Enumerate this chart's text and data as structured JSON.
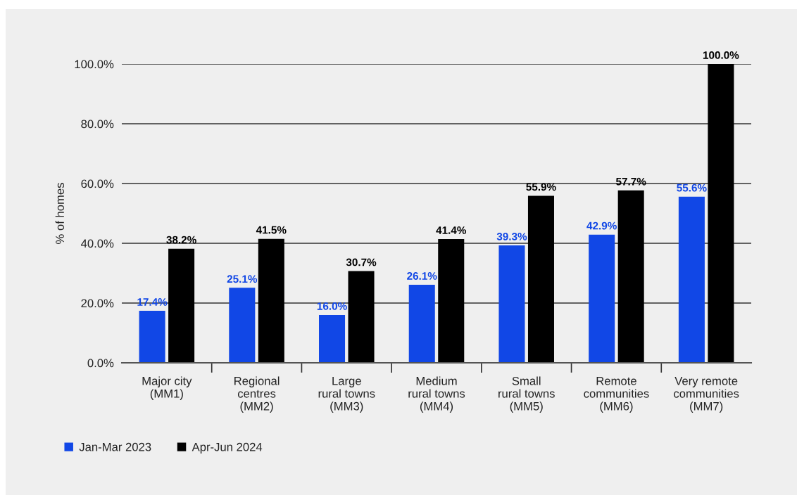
{
  "chart_data": {
    "type": "bar",
    "ylabel": "% of homes",
    "categories": [
      "Major city\n(MM1)",
      "Regional\ncentres\n(MM2)",
      "Large\nrural towns\n(MM3)",
      "Medium\nrural towns\n(MM4)",
      "Small\nrural towns\n(MM5)",
      "Remote\ncommunities\n(MM6)",
      "Very remote\ncommunities\n(MM7)"
    ],
    "series": [
      {
        "name": "Jan-Mar 2023",
        "color": "#1147e6",
        "values": [
          17.4,
          25.1,
          16.0,
          26.1,
          39.3,
          42.9,
          55.6
        ],
        "value_labels": [
          "17.4%",
          "25.1%",
          "16.0%",
          "26.1%",
          "39.3%",
          "42.9%",
          "55.6%"
        ]
      },
      {
        "name": "Apr-Jun 2024",
        "color": "#000000",
        "values": [
          38.2,
          41.5,
          30.7,
          41.4,
          55.9,
          57.7,
          100.0
        ],
        "value_labels": [
          "38.2%",
          "41.5%",
          "30.7%",
          "41.4%",
          "55.9%",
          "57.7%",
          "100.0%"
        ]
      }
    ],
    "ylim": [
      0,
      100
    ],
    "yticks": [
      {
        "value": 0,
        "label": "0.0%"
      },
      {
        "value": 20,
        "label": "20.0%"
      },
      {
        "value": 40,
        "label": "40.0%"
      },
      {
        "value": 60,
        "label": "60.0%"
      },
      {
        "value": 80,
        "label": "80.0%"
      },
      {
        "value": 100,
        "label": "100.0%"
      }
    ],
    "grid": "y",
    "legend": "bottom left"
  }
}
